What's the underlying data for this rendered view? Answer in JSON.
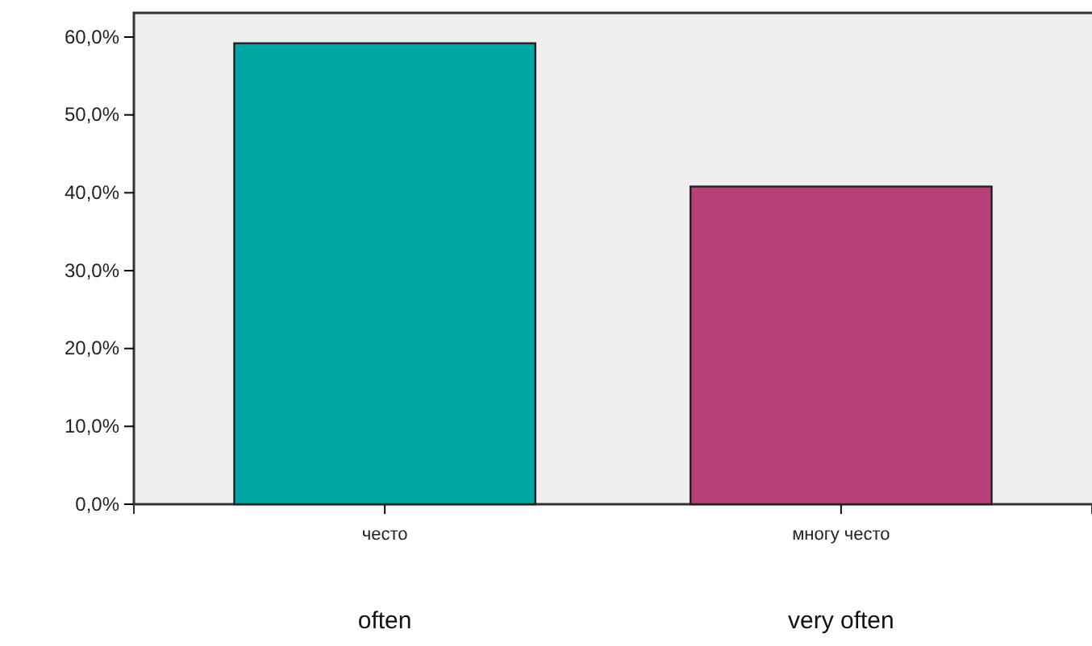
{
  "chart_data": {
    "type": "bar",
    "categories": [
      "често",
      "многу често"
    ],
    "colors": [
      "#00a6a3",
      "#b93f7b"
    ],
    "values": [
      59.2,
      40.8
    ],
    "ylim": [
      0,
      63.1
    ],
    "yticks": [
      {
        "value": 0,
        "label": "0,0%"
      },
      {
        "value": 10,
        "label": "10,0%"
      },
      {
        "value": 20,
        "label": "20,0%"
      },
      {
        "value": 30,
        "label": "30,0%"
      },
      {
        "value": 40,
        "label": "40,0%"
      },
      {
        "value": 50,
        "label": "50,0%"
      },
      {
        "value": 60,
        "label": "60,0%"
      }
    ],
    "annotations": [
      "often",
      "very often"
    ]
  }
}
